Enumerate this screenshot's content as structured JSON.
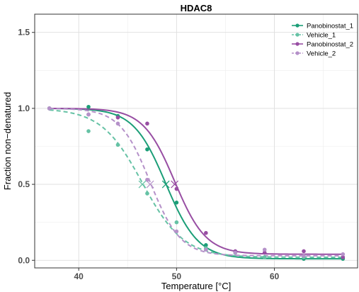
{
  "chart_data": {
    "type": "scatter",
    "title": "HDAC8",
    "xlabel": "Temperature [°C]",
    "ylabel": "Fraction non−denatured",
    "xlim": [
      35.5,
      68.5
    ],
    "ylim": [
      -0.05,
      1.62
    ],
    "x_ticks": [
      {
        "value": 40,
        "label": "40"
      },
      {
        "value": 50,
        "label": "50"
      },
      {
        "value": 60,
        "label": "60"
      }
    ],
    "y_ticks": [
      {
        "value": 0,
        "label": "0.0"
      },
      {
        "value": 0.5,
        "label": "0.5"
      },
      {
        "value": 1.0,
        "label": "1.0"
      },
      {
        "value": 1.5,
        "label": "1.5"
      }
    ],
    "grid": true,
    "legend_position": "top-right",
    "series": [
      {
        "name": "Panobinostat_1",
        "color": "#1b9e77",
        "line_style": "solid",
        "points": [
          [
            37,
            1.0
          ],
          [
            41,
            1.01
          ],
          [
            44,
            0.95
          ],
          [
            47,
            0.73
          ],
          [
            50,
            0.38
          ],
          [
            53,
            0.1
          ],
          [
            56,
            0.05
          ],
          [
            59,
            0.02
          ],
          [
            63,
            0.01
          ],
          [
            67,
            0.01
          ]
        ],
        "fit": {
          "top": 1.0,
          "bottom": 0.01,
          "tm": 48.9,
          "slope": 1.65
        },
        "midpoint": [
          48.9,
          0.5
        ]
      },
      {
        "name": "Vehicle_1",
        "color": "#66c2a5",
        "line_style": "dashed",
        "points": [
          [
            37,
            1.0
          ],
          [
            41,
            0.85
          ],
          [
            44,
            0.76
          ],
          [
            47,
            0.44
          ],
          [
            50,
            0.25
          ],
          [
            53,
            0.08
          ],
          [
            56,
            0.05
          ],
          [
            59,
            0.02
          ],
          [
            63,
            0.02
          ],
          [
            67,
            0.02
          ]
        ],
        "fit": {
          "top": 1.0,
          "bottom": 0.02,
          "tm": 46.5,
          "slope": 2.1
        },
        "midpoint": [
          46.5,
          0.5
        ]
      },
      {
        "name": "Panobinostat_2",
        "color": "#984ea3",
        "line_style": "solid",
        "points": [
          [
            37,
            1.0
          ],
          [
            41,
            0.96
          ],
          [
            44,
            0.94
          ],
          [
            47,
            0.9
          ],
          [
            50,
            0.47
          ],
          [
            53,
            0.18
          ],
          [
            56,
            0.06
          ],
          [
            59,
            0.05
          ],
          [
            63,
            0.06
          ],
          [
            67,
            0.02
          ]
        ],
        "fit": {
          "top": 1.0,
          "bottom": 0.04,
          "tm": 49.8,
          "slope": 1.6
        },
        "midpoint": [
          49.8,
          0.5
        ]
      },
      {
        "name": "Vehicle_2",
        "color": "#b591c9",
        "line_style": "dashed",
        "points": [
          [
            37,
            1.0
          ],
          [
            41,
            0.96
          ],
          [
            44,
            0.9
          ],
          [
            47,
            0.53
          ],
          [
            50,
            0.19
          ],
          [
            53,
            0.07
          ],
          [
            56,
            0.05
          ],
          [
            59,
            0.07
          ],
          [
            63,
            0.03
          ],
          [
            67,
            0.04
          ]
        ],
        "fit": {
          "top": 1.0,
          "bottom": 0.03,
          "tm": 47.3,
          "slope": 1.55
        },
        "midpoint": [
          47.3,
          0.5
        ]
      }
    ]
  }
}
